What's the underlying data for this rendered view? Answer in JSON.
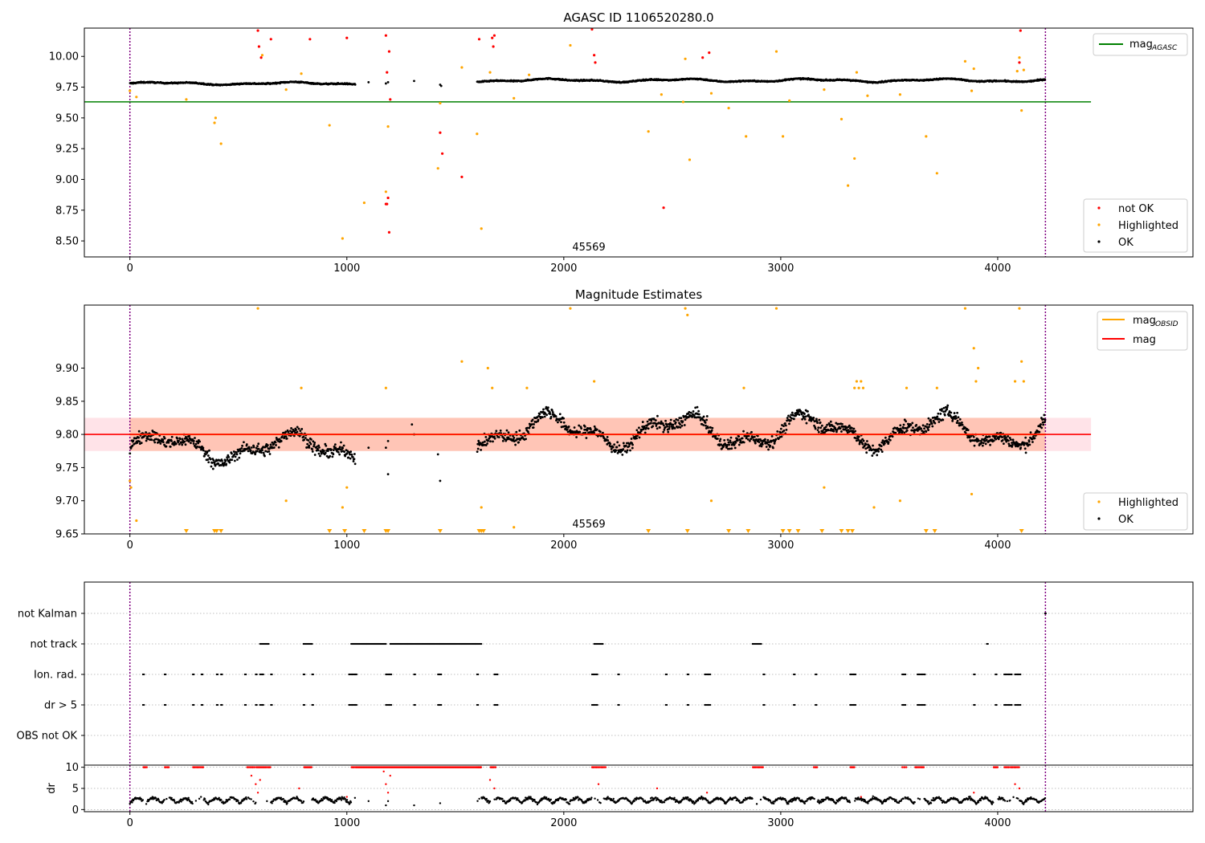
{
  "figure": {
    "obsid_label": "45569"
  },
  "chart_data": [
    {
      "type": "scatter",
      "title": "AGASC ID 1106520280.0",
      "xlabel": "",
      "ylabel": "",
      "xlim": [
        -210,
        4900
      ],
      "ylim": [
        8.37,
        10.23
      ],
      "xticks": [
        0,
        1000,
        2000,
        3000,
        4000
      ],
      "yticks": [
        8.5,
        8.75,
        9.0,
        9.25,
        9.5,
        9.75,
        10.0
      ],
      "ytick_labels": [
        "8.50",
        "8.75",
        "9.00",
        "9.25",
        "9.50",
        "9.75",
        "10.00"
      ],
      "obs_boundaries": [
        0,
        4220
      ],
      "lines": [
        {
          "name": "mag_{AGASC}",
          "legend_main": "mag",
          "legend_sub": "AGASC",
          "color": "#008000",
          "y": 9.63,
          "x": [
            -210,
            4430
          ]
        }
      ],
      "baseline_segments": [
        {
          "x": [
            0,
            1040
          ],
          "y0": 9.78,
          "amp": 0.03
        },
        {
          "x": [
            1600,
            4220
          ],
          "y0": 9.805,
          "amp": 0.035
        }
      ],
      "series": [
        {
          "name": "not OK",
          "color": "#ff0000",
          "x": [
            590,
            595,
            605,
            650,
            830,
            1000,
            1180,
            1185,
            1195,
            1200,
            1180,
            1185,
            1190,
            1195,
            1430,
            1440,
            1530,
            1610,
            1670,
            1680,
            1675,
            2130,
            2140,
            2145,
            2460,
            2640,
            2670,
            4100,
            4105
          ],
          "y": [
            10.21,
            10.08,
            9.99,
            10.14,
            10.14,
            10.15,
            10.17,
            9.87,
            10.04,
            9.65,
            8.8,
            8.8,
            8.85,
            8.57,
            9.38,
            9.21,
            9.02,
            10.14,
            10.15,
            10.17,
            10.08,
            10.22,
            10.01,
            9.95,
            8.77,
            9.99,
            10.03,
            9.95,
            10.21
          ]
        },
        {
          "name": "Highlighted",
          "color": "#ffa500",
          "x": [
            0,
            30,
            260,
            390,
            395,
            420,
            610,
            720,
            790,
            920,
            980,
            1080,
            1180,
            1190,
            1420,
            1430,
            1530,
            1600,
            1620,
            1660,
            1770,
            1840,
            2030,
            2390,
            2450,
            2550,
            2560,
            2580,
            2680,
            2760,
            2840,
            2980,
            3010,
            3040,
            3200,
            3280,
            3310,
            3340,
            3350,
            3400,
            3550,
            3670,
            3720,
            3850,
            3880,
            3890,
            4090,
            4100,
            4110,
            4120
          ],
          "y": [
            9.72,
            9.67,
            9.65,
            9.46,
            9.5,
            9.29,
            10.01,
            9.73,
            9.86,
            9.44,
            8.52,
            8.81,
            8.9,
            9.43,
            9.09,
            9.62,
            9.91,
            9.37,
            8.6,
            9.87,
            9.66,
            9.85,
            10.09,
            9.39,
            9.69,
            9.63,
            9.98,
            9.16,
            9.7,
            9.58,
            9.35,
            10.04,
            9.35,
            9.64,
            9.73,
            9.49,
            8.95,
            9.17,
            9.87,
            9.68,
            9.69,
            9.35,
            9.05,
            9.96,
            9.72,
            9.9,
            9.88,
            9.99,
            9.56,
            9.89
          ]
        },
        {
          "name": "OK",
          "color": "#000000",
          "render": "dense-baseline"
        }
      ]
    },
    {
      "type": "scatter",
      "title": "Magnitude Estimates",
      "xlabel": "",
      "ylabel": "",
      "xlim": [
        -210,
        4900
      ],
      "ylim": [
        9.65,
        9.995
      ],
      "xticks": [
        0,
        1000,
        2000,
        3000,
        4000
      ],
      "yticks": [
        9.65,
        9.7,
        9.75,
        9.8,
        9.85,
        9.9
      ],
      "ytick_labels": [
        "9.65",
        "9.70",
        "9.75",
        "9.80",
        "9.85",
        "9.90"
      ],
      "obs_boundaries": [
        0,
        4220
      ],
      "lines": [
        {
          "name": "mag_{OBSID}",
          "legend_main": "mag",
          "legend_sub": "OBSID",
          "color": "#ffa500",
          "y": 9.8,
          "x": [
            0,
            4220
          ]
        },
        {
          "name": "mag",
          "legend_main": "mag",
          "legend_sub": "",
          "color": "#ff0000",
          "y": 9.8,
          "x": [
            -210,
            4430
          ]
        }
      ],
      "bands": [
        {
          "y": [
            9.775,
            9.825
          ],
          "x": [
            -210,
            4430
          ],
          "color": "#ffc0cb"
        },
        {
          "y": [
            9.775,
            9.825
          ],
          "x": [
            0,
            4220
          ],
          "color": "#ffa07a"
        }
      ],
      "baseline_segments": [
        {
          "x": [
            0,
            1040
          ],
          "y0": 9.78,
          "amp": 0.03
        },
        {
          "x": [
            1600,
            4220
          ],
          "y0": 9.805,
          "amp": 0.035
        }
      ],
      "series": [
        {
          "name": "Highlighted",
          "color": "#ffa500",
          "x": [
            0,
            5,
            30,
            590,
            720,
            790,
            980,
            1000,
            1180,
            1530,
            1620,
            1650,
            1670,
            1770,
            1830,
            2030,
            2140,
            2560,
            2570,
            2680,
            2830,
            2980,
            3200,
            3340,
            3350,
            3360,
            3370,
            3380,
            3430,
            3550,
            3580,
            3720,
            3850,
            3880,
            3890,
            3900,
            3910,
            4080,
            4100,
            4110,
            4120
          ],
          "y": [
            9.73,
            9.72,
            9.67,
            9.99,
            9.7,
            9.87,
            9.69,
            9.72,
            9.87,
            9.91,
            9.69,
            9.9,
            9.87,
            9.66,
            9.87,
            9.99,
            9.88,
            9.99,
            9.98,
            9.7,
            9.87,
            9.99,
            9.72,
            9.87,
            9.88,
            9.87,
            9.88,
            9.87,
            9.69,
            9.7,
            9.87,
            9.87,
            9.99,
            9.71,
            9.93,
            9.88,
            9.9,
            9.88,
            9.99,
            9.91,
            9.88
          ]
        },
        {
          "name": "Highlighted (below axis)",
          "color": "#ffa500",
          "marker": "triangle-down",
          "x": [
            260,
            390,
            400,
            420,
            920,
            990,
            1080,
            1180,
            1190,
            1430,
            1610,
            1620,
            1630,
            2390,
            2570,
            2760,
            2850,
            3010,
            3040,
            3080,
            3190,
            3280,
            3310,
            3330,
            3670,
            3710,
            4110
          ],
          "y": [
            9.65,
            9.65,
            9.65,
            9.65,
            9.65,
            9.65,
            9.65,
            9.65,
            9.65,
            9.65,
            9.65,
            9.65,
            9.65,
            9.65,
            9.65,
            9.65,
            9.65,
            9.65,
            9.65,
            9.65,
            9.65,
            9.65,
            9.65,
            9.65,
            9.65,
            9.65,
            9.65
          ]
        },
        {
          "name": "OK",
          "color": "#000000",
          "render": "dense-baseline"
        }
      ]
    },
    {
      "type": "scatter",
      "title": "",
      "xlabel": "",
      "ylabel": "",
      "xlim": [
        -210,
        4900
      ],
      "obs_boundaries": [
        0,
        4220
      ],
      "flag_rows": [
        "not Kalman",
        "not track",
        "Ion. rad.",
        "dr > 5",
        "OBS not OK"
      ],
      "flags": {
        "not Kalman": {
          "ranges": [
            [
              4218,
              4222
            ]
          ]
        },
        "not track": {
          "ranges": [
            [
              600,
              640
            ],
            [
              800,
              840
            ],
            [
              1020,
              1180
            ],
            [
              1200,
              1620
            ],
            [
              2140,
              2180
            ],
            [
              2870,
              2910
            ]
          ],
          "points": [
            3950
          ]
        },
        "Ion. rad.": {
          "points": [
            60,
            160,
            290,
            330,
            400,
            420,
            530,
            580,
            600,
            610,
            650,
            800,
            840,
            1010,
            1020,
            1030,
            1040,
            1180,
            1190,
            1200,
            1310,
            1420,
            1430,
            1600,
            1680,
            1690,
            2130,
            2140,
            2150,
            2250,
            2470,
            2570,
            2650,
            2660,
            2670,
            2920,
            3060,
            3160,
            3320,
            3330,
            3340,
            3560,
            3570,
            3630,
            3640,
            3650,
            3660,
            3890,
            3990,
            4030,
            4040,
            4050,
            4060,
            4080,
            4090,
            4100
          ]
        },
        "dr > 5": {
          "points": [
            60,
            160,
            290,
            330,
            400,
            420,
            530,
            580,
            600,
            610,
            650,
            800,
            840,
            1010,
            1020,
            1030,
            1040,
            1180,
            1190,
            1200,
            1310,
            1420,
            1430,
            1600,
            1680,
            1690,
            2130,
            2140,
            2150,
            2250,
            2470,
            2570,
            2650,
            2660,
            2670,
            2920,
            3060,
            3160,
            3320,
            3330,
            3340,
            3560,
            3570,
            3630,
            3640,
            3650,
            3660,
            3890,
            3990,
            4030,
            4040,
            4050,
            4060,
            4080,
            4090,
            4100
          ]
        }
      }
    },
    {
      "type": "scatter",
      "title": "",
      "xlabel": "",
      "ylabel": "dr",
      "xlim": [
        -210,
        4900
      ],
      "ylim": [
        -0.5,
        10.5
      ],
      "xticks": [
        0,
        1000,
        2000,
        3000,
        4000
      ],
      "yticks": [
        0,
        5,
        10
      ],
      "ytick_labels": [
        "0",
        "5",
        "10"
      ],
      "obs_boundaries": [
        0,
        4220
      ],
      "series": [
        {
          "name": "dr OK",
          "color": "#000000",
          "render": "dense-dr"
        },
        {
          "name": "dr flagged",
          "color": "#ff0000",
          "render": "dense-dr-flagged",
          "clip_ranges": [
            [
              60,
              80
            ],
            [
              160,
              180
            ],
            [
              290,
              340
            ],
            [
              540,
              650
            ],
            [
              800,
              840
            ],
            [
              1020,
              1620
            ],
            [
              1660,
              1690
            ],
            [
              2130,
              2200
            ],
            [
              2870,
              2920
            ],
            [
              3150,
              3170
            ],
            [
              3320,
              3340
            ],
            [
              3560,
              3580
            ],
            [
              3620,
              3660
            ],
            [
              3980,
              4000
            ],
            [
              4030,
              4100
            ]
          ],
          "scatter_x": [
            560,
            580,
            590,
            600,
            780,
            1000,
            1170,
            1180,
            1190,
            1200,
            1660,
            1680,
            2160,
            2430,
            2660,
            3370,
            3890,
            4080,
            4100
          ],
          "scatter_y": [
            8,
            6,
            4,
            7,
            5,
            3,
            9,
            6,
            4,
            8,
            7,
            5,
            6,
            5,
            4,
            3,
            4,
            6,
            5
          ]
        }
      ]
    }
  ]
}
